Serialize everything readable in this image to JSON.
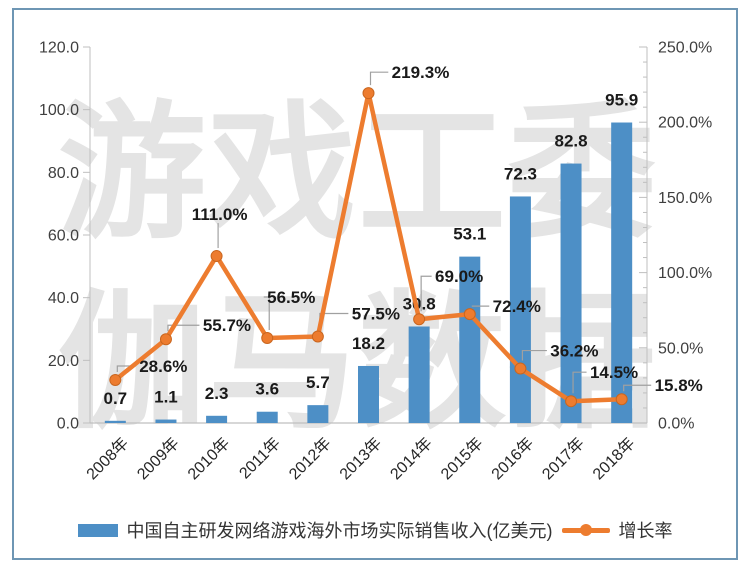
{
  "watermark": {
    "line1": "游戏工委",
    "line2": "伽马数据"
  },
  "legend": {
    "series1_label": "中国自主研发网络游戏海外市场实际销售收入(亿美元)",
    "series2_label": "增长率"
  },
  "colors": {
    "bar": "#4d8fc6",
    "line": "#ed7c2f",
    "marker_edge": "#c9661f",
    "axis": "#bfbfbf",
    "tick_text": "#3f3f3f",
    "data_label": "#1a1a1a",
    "leader": "#a0a0a0",
    "frame": "#6e96b4",
    "watermark": "#e4e4e4"
  },
  "chart_data": {
    "type": "bar",
    "subtype": "combo-bar-line-dual-axis",
    "title": "",
    "categories": [
      "2008年",
      "2009年",
      "2010年",
      "2011年",
      "2012年",
      "2013年",
      "2014年",
      "2015年",
      "2016年",
      "2017年",
      "2018年"
    ],
    "series": [
      {
        "name": "中国自主研发网络游戏海外市场实际销售收入(亿美元)",
        "type": "bar",
        "axis": "left",
        "values": [
          0.7,
          1.1,
          2.3,
          3.6,
          5.7,
          18.2,
          30.8,
          53.1,
          72.3,
          82.8,
          95.9
        ],
        "labels": [
          "0.7",
          "1.1",
          "2.3",
          "3.6",
          "5.7",
          "18.2",
          "30.8",
          "53.1",
          "72.3",
          "82.8",
          "95.9"
        ]
      },
      {
        "name": "增长率",
        "type": "line",
        "axis": "right",
        "values": [
          28.6,
          55.7,
          111.0,
          56.5,
          57.5,
          219.3,
          69.0,
          72.4,
          36.2,
          14.5,
          15.8
        ],
        "labels": [
          "28.6%",
          "55.7%",
          "111.0%",
          "56.5%",
          "57.5%",
          "219.3%",
          "69.0%",
          "72.4%",
          "36.2%",
          "14.5%",
          "15.8%"
        ]
      }
    ],
    "left_axis": {
      "min": 0,
      "max": 120,
      "step": 20,
      "tick_labels": [
        "0.0",
        "20.0",
        "40.0",
        "60.0",
        "80.0",
        "100.0",
        "120.0"
      ]
    },
    "right_axis": {
      "min": 0,
      "max": 250,
      "step": 50,
      "minor_step": 10,
      "tick_labels": [
        "0.0%",
        "50.0%",
        "100.0%",
        "150.0%",
        "200.0%",
        "250.0%"
      ]
    },
    "grid": false,
    "legend_position": "bottom"
  }
}
